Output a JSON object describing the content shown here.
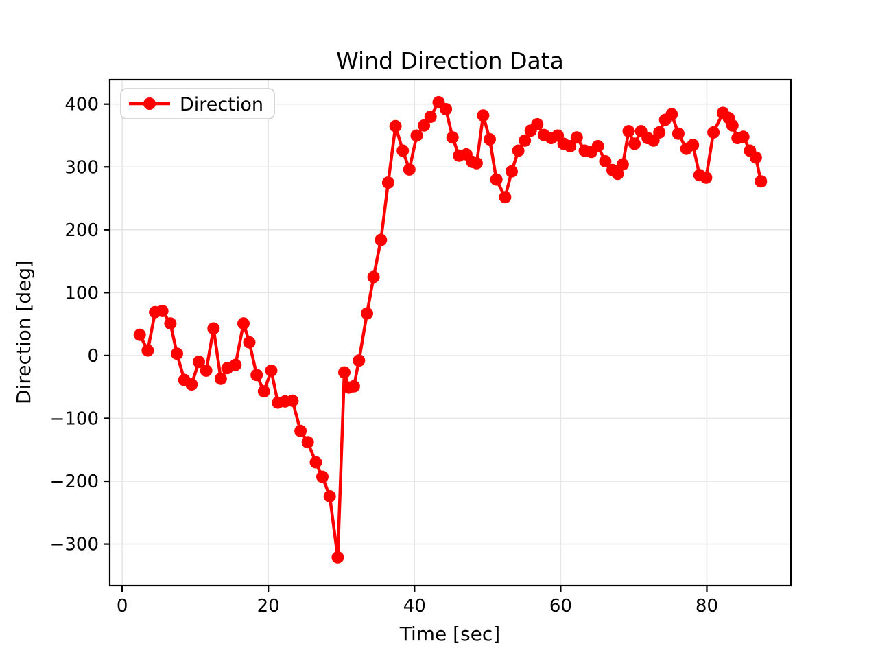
{
  "chart_data": {
    "type": "line",
    "title": "Wind Direction Data",
    "xlabel": "Time [sec]",
    "ylabel": "Direction [deg]",
    "grid": true,
    "legend_position": "upper left",
    "xlim": [
      -1.7,
      91.5
    ],
    "ylim": [
      -366,
      439
    ],
    "x_ticks": [
      0,
      20,
      40,
      60,
      80
    ],
    "y_ticks": [
      -300,
      -200,
      -100,
      0,
      100,
      200,
      300,
      400
    ],
    "series": [
      {
        "name": "Direction",
        "color": "#ff0000",
        "marker": "circle",
        "points": [
          [
            2.4,
            33
          ],
          [
            3.5,
            8
          ],
          [
            4.5,
            69
          ],
          [
            5.5,
            71
          ],
          [
            6.6,
            51
          ],
          [
            7.5,
            3
          ],
          [
            8.5,
            -39
          ],
          [
            9.5,
            -46
          ],
          [
            10.5,
            -10
          ],
          [
            11.5,
            -24
          ],
          [
            12.5,
            43
          ],
          [
            13.5,
            -37
          ],
          [
            14.4,
            -20
          ],
          [
            15.5,
            -15
          ],
          [
            16.6,
            51
          ],
          [
            17.4,
            21
          ],
          [
            18.4,
            -31
          ],
          [
            19.4,
            -57
          ],
          [
            20.4,
            -24
          ],
          [
            21.3,
            -75
          ],
          [
            22.3,
            -73
          ],
          [
            23.3,
            -72
          ],
          [
            24.4,
            -120
          ],
          [
            25.4,
            -138
          ],
          [
            26.5,
            -170
          ],
          [
            27.4,
            -193
          ],
          [
            28.4,
            -224
          ],
          [
            29.5,
            -321
          ],
          [
            30.4,
            -27
          ],
          [
            31.0,
            -51
          ],
          [
            31.7,
            -49
          ],
          [
            32.4,
            -8
          ],
          [
            33.5,
            67
          ],
          [
            34.4,
            125
          ],
          [
            35.4,
            184
          ],
          [
            36.4,
            275
          ],
          [
            37.4,
            365
          ],
          [
            38.4,
            326
          ],
          [
            39.3,
            296
          ],
          [
            40.3,
            350
          ],
          [
            41.3,
            366
          ],
          [
            42.2,
            380
          ],
          [
            43.3,
            403
          ],
          [
            44.3,
            392
          ],
          [
            45.2,
            347
          ],
          [
            46.1,
            318
          ],
          [
            47.1,
            320
          ],
          [
            47.9,
            308
          ],
          [
            48.5,
            306
          ],
          [
            49.4,
            382
          ],
          [
            50.3,
            344
          ],
          [
            51.2,
            280
          ],
          [
            52.4,
            252
          ],
          [
            53.3,
            293
          ],
          [
            54.2,
            326
          ],
          [
            55.1,
            342
          ],
          [
            55.9,
            358
          ],
          [
            56.8,
            368
          ],
          [
            57.7,
            351
          ],
          [
            58.7,
            346
          ],
          [
            59.6,
            350
          ],
          [
            60.4,
            337
          ],
          [
            61.3,
            333
          ],
          [
            62.2,
            347
          ],
          [
            63.3,
            326
          ],
          [
            64.2,
            324
          ],
          [
            65.1,
            333
          ],
          [
            66.1,
            309
          ],
          [
            67.1,
            295
          ],
          [
            67.8,
            289
          ],
          [
            68.5,
            304
          ],
          [
            69.3,
            357
          ],
          [
            70.1,
            337
          ],
          [
            71.0,
            357
          ],
          [
            71.9,
            346
          ],
          [
            72.7,
            342
          ],
          [
            73.5,
            355
          ],
          [
            74.3,
            375
          ],
          [
            75.2,
            384
          ],
          [
            76.1,
            353
          ],
          [
            77.2,
            329
          ],
          [
            78.1,
            335
          ],
          [
            79.0,
            287
          ],
          [
            79.9,
            283
          ],
          [
            80.9,
            355
          ],
          [
            82.2,
            386
          ],
          [
            83.0,
            378
          ],
          [
            83.5,
            366
          ],
          [
            84.2,
            346
          ],
          [
            85.0,
            348
          ],
          [
            85.9,
            326
          ],
          [
            86.7,
            315
          ],
          [
            87.4,
            277
          ]
        ]
      }
    ]
  },
  "legend": {
    "items": [
      {
        "label": "Direction",
        "color": "#ff0000"
      }
    ]
  },
  "colors": {
    "line": "#ff0000",
    "grid": "#e6e6e6",
    "spine": "#000000",
    "text": "#000000",
    "legend_border": "#cccccc",
    "background": "#ffffff"
  }
}
